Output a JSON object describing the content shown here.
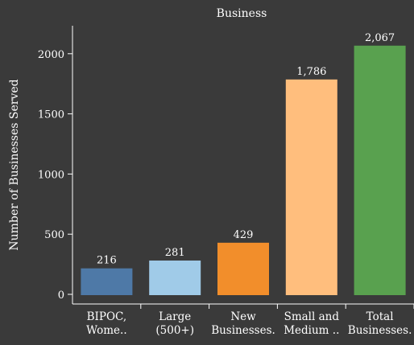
{
  "chart_data": {
    "type": "bar",
    "title": "Business",
    "xlabel": "",
    "ylabel": "Number of Businesses Served",
    "categories": [
      [
        "BIPOC,",
        "Wome.."
      ],
      [
        "Large",
        "(500+)"
      ],
      [
        "New",
        "Businesses."
      ],
      [
        "Small and",
        "Medium .."
      ],
      [
        "Total",
        "Businesses."
      ]
    ],
    "values": [
      216,
      281,
      429,
      1786,
      2067
    ],
    "value_labels": [
      "216",
      "281",
      "429",
      "1,786",
      "2,067"
    ],
    "colors": [
      "#4e79a7",
      "#a0cbe8",
      "#f28e2b",
      "#ffbe7d",
      "#59a14f"
    ],
    "ylim": [
      0,
      2250
    ],
    "yticks": [
      0,
      500,
      1000,
      1500,
      2000
    ],
    "ytick_labels": [
      "0",
      "500",
      "1000",
      "1500",
      "2000"
    ],
    "grid": false,
    "legend": "none"
  }
}
